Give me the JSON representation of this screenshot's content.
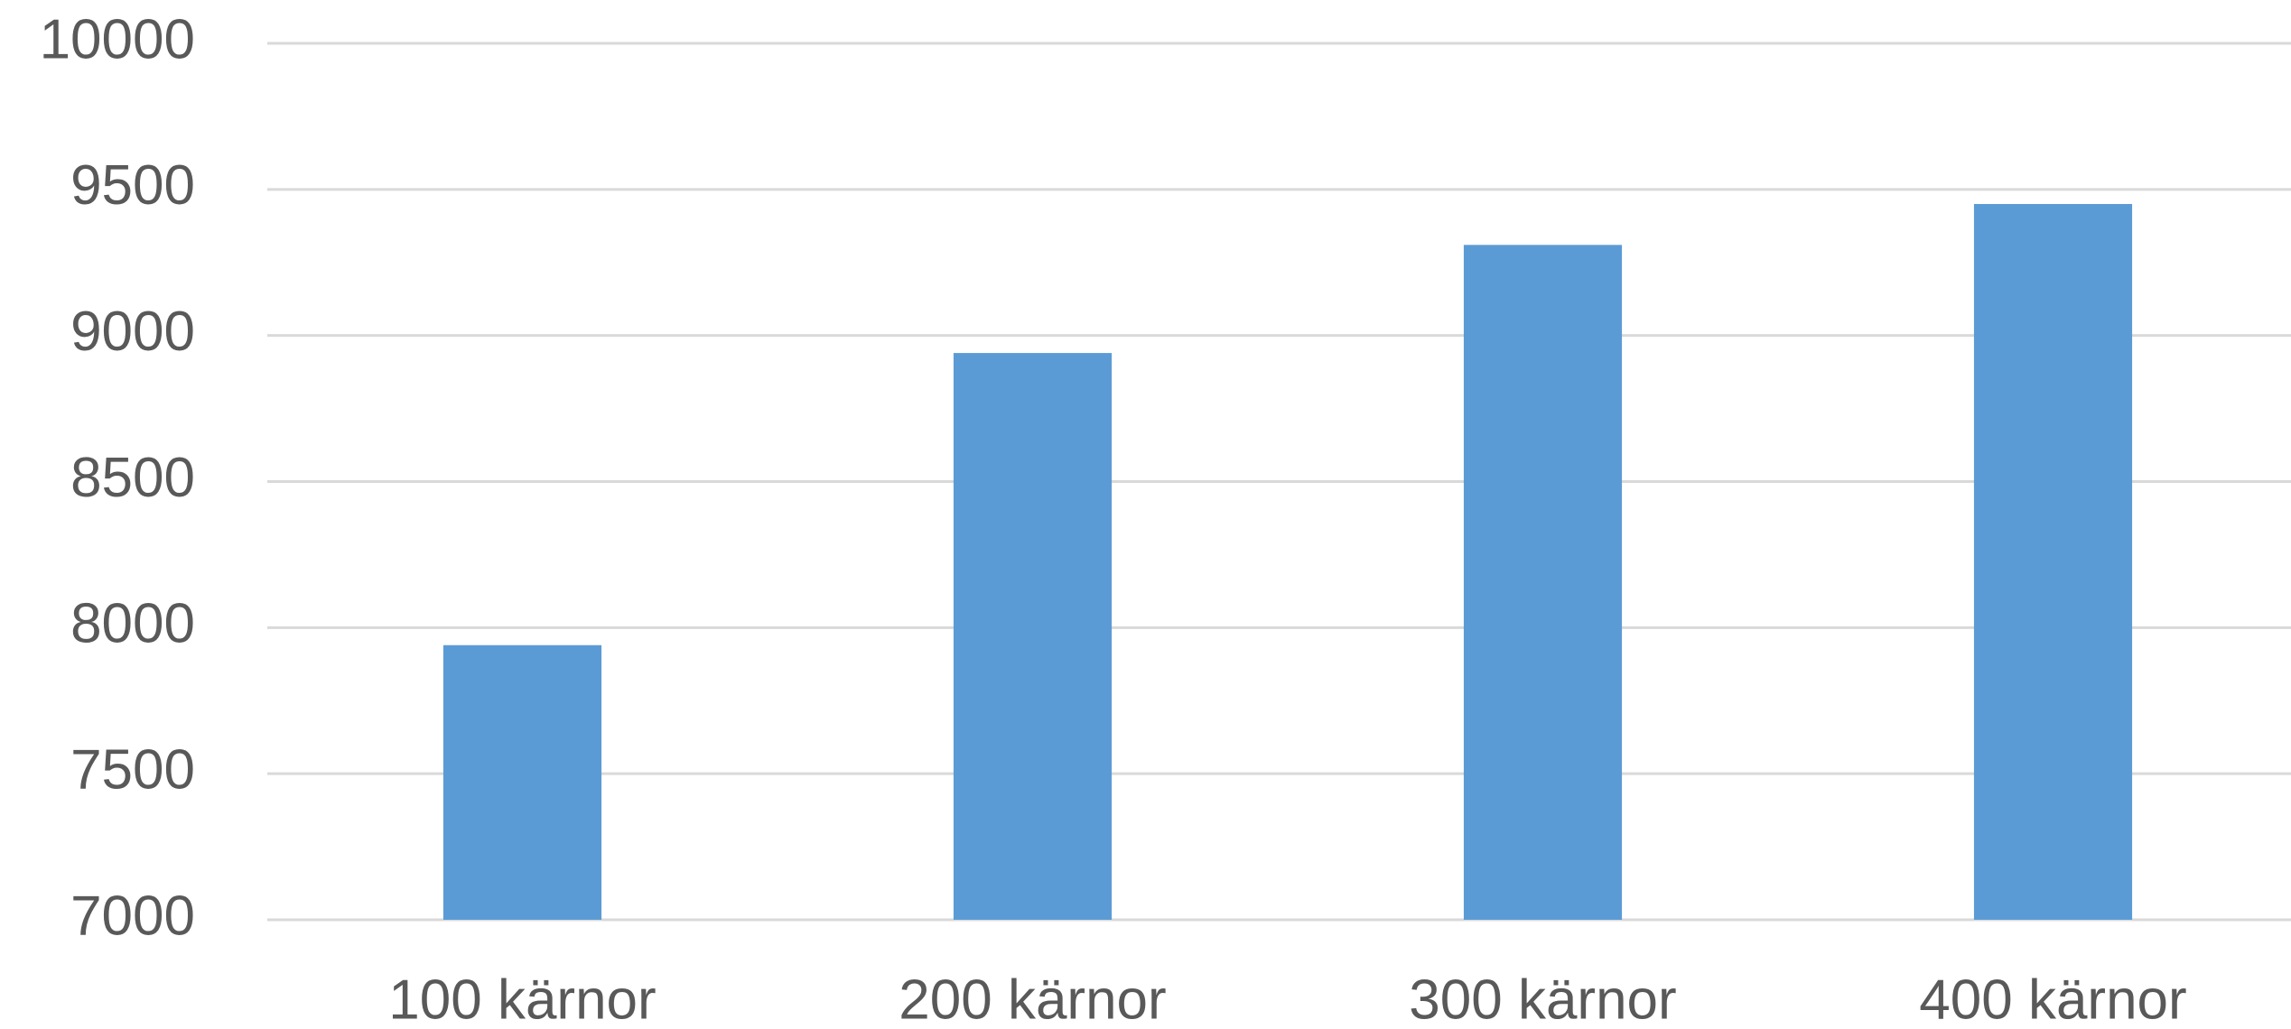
{
  "chart_data": {
    "type": "bar",
    "categories": [
      "100 kärnor",
      "200 kärnor",
      "300 kärnor",
      "400 kärnor"
    ],
    "values": [
      7940,
      8940,
      9310,
      9450
    ],
    "color": "#5b9bd5",
    "ylim": [
      7000,
      10000
    ],
    "yticks": [
      7000,
      7500,
      8000,
      8500,
      9000,
      9500,
      10000
    ],
    "grid": true
  }
}
